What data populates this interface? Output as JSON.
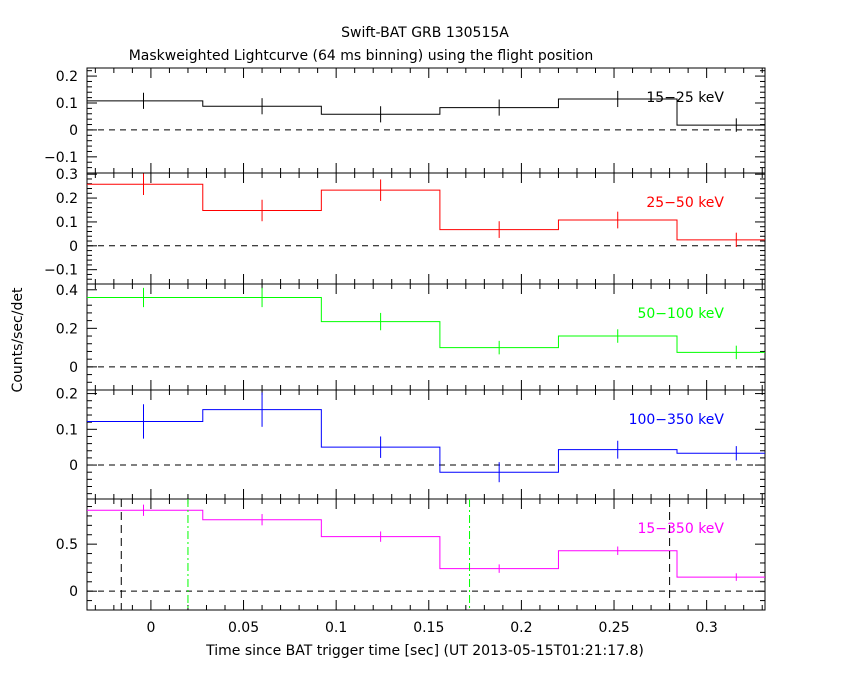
{
  "chart_data": {
    "type": "line",
    "title": "Swift-BAT GRB 130515A",
    "subtitle": "Maskweighted Lightcurve (64 ms binning) using the flight position",
    "xlabel": "Time since BAT trigger time [sec] (UT 2013-05-15T01:21:17.8)",
    "ylabel": "Counts/sec/det",
    "xlim": [
      -0.0345,
      0.3315
    ],
    "xticks": [
      0,
      0.05,
      0.1,
      0.15,
      0.2,
      0.25,
      0.3
    ],
    "xtick_labels": [
      "0",
      "0.05",
      "0.1",
      "0.15",
      "0.2",
      "0.25",
      "0.3"
    ],
    "bin_edges": [
      -0.036,
      0.028,
      0.092,
      0.156,
      0.22,
      0.284,
      0.348
    ],
    "bin_centers": [
      -0.004,
      0.06,
      0.124,
      0.188,
      0.252,
      0.316
    ],
    "panels": [
      {
        "label": "15−25 keV",
        "color": "#000000",
        "ylim": [
          -0.16,
          0.23
        ],
        "yticks": [
          -0.1,
          0,
          0.1,
          0.2
        ],
        "ytick_labels": [
          "−0.1",
          "0",
          "0.1",
          "0.2"
        ],
        "values": [
          0.108,
          0.088,
          0.058,
          0.083,
          0.115,
          0.018
        ],
        "errors": [
          0.03,
          0.03,
          0.03,
          0.03,
          0.03,
          0.025
        ]
      },
      {
        "label": "25−50 keV",
        "color": "#ff0000",
        "ylim": [
          -0.16,
          0.305
        ],
        "yticks": [
          -0.1,
          0,
          0.1,
          0.2,
          0.3
        ],
        "ytick_labels": [
          "−0.1",
          "0",
          "0.1",
          "0.2",
          "0.3"
        ],
        "values": [
          0.258,
          0.148,
          0.233,
          0.068,
          0.108,
          0.025
        ],
        "errors": [
          0.045,
          0.045,
          0.045,
          0.035,
          0.035,
          0.03
        ]
      },
      {
        "label": "50−100 keV",
        "color": "#00ff00",
        "ylim": [
          -0.12,
          0.43
        ],
        "yticks": [
          0,
          0.2,
          0.4
        ],
        "ytick_labels": [
          "0",
          "0.2",
          "0.4"
        ],
        "values": [
          0.36,
          0.36,
          0.235,
          0.1,
          0.16,
          0.075
        ],
        "errors": [
          0.05,
          0.05,
          0.045,
          0.035,
          0.035,
          0.035
        ]
      },
      {
        "label": "100−350 keV",
        "color": "#0000ff",
        "ylim": [
          -0.095,
          0.21
        ],
        "yticks": [
          0,
          0.1,
          0.2
        ],
        "ytick_labels": [
          "0",
          "0.1",
          "0.2"
        ],
        "values": [
          0.122,
          0.155,
          0.05,
          -0.02,
          0.043,
          0.033
        ],
        "errors": [
          0.048,
          0.048,
          0.03,
          0.028,
          0.025,
          0.02
        ]
      },
      {
        "label": "15−350 keV",
        "color": "#ff00ff",
        "ylim": [
          -0.2,
          0.98
        ],
        "yticks": [
          0,
          0.5
        ],
        "ytick_labels": [
          "0",
          "0.5"
        ],
        "values": [
          0.86,
          0.76,
          0.58,
          0.24,
          0.43,
          0.15
        ],
        "errors": [
          0.06,
          0.06,
          0.055,
          0.045,
          0.045,
          0.04
        ]
      }
    ],
    "markers": [
      {
        "x": -0.016,
        "color": "#000000",
        "style": "dashed"
      },
      {
        "x": 0.02,
        "color": "#00ff00",
        "style": "dashdot"
      },
      {
        "x": 0.172,
        "color": "#00ff00",
        "style": "dashdot"
      },
      {
        "x": 0.28,
        "color": "#000000",
        "style": "dashed"
      }
    ],
    "zero_line": true,
    "grid": false
  }
}
